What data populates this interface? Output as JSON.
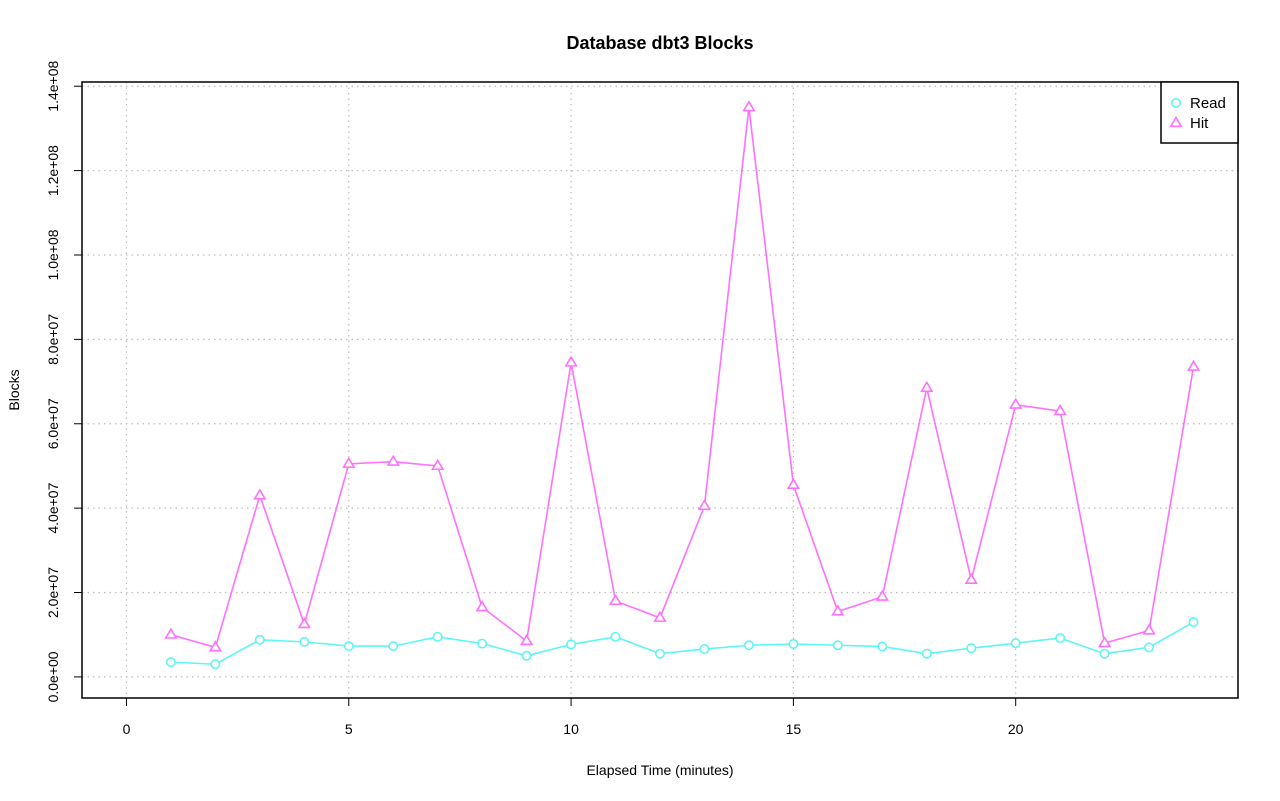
{
  "chart_data": {
    "type": "line",
    "title": "Database dbt3 Blocks",
    "xlabel": "Elapsed Time (minutes)",
    "ylabel": "Blocks",
    "xlim": [
      -1,
      25
    ],
    "ylim": [
      -5000000,
      141000000
    ],
    "x_ticks": [
      0,
      5,
      10,
      15,
      20
    ],
    "x_tick_labels": [
      "0",
      "5",
      "10",
      "15",
      "20"
    ],
    "y_ticks": [
      0,
      20000000,
      40000000,
      60000000,
      80000000,
      100000000,
      120000000,
      140000000
    ],
    "y_tick_labels": [
      "0.0e+00",
      "2.0e+07",
      "4.0e+07",
      "6.0e+07",
      "8.0e+07",
      "1.0e+08",
      "1.2e+08",
      "1.4e+08"
    ],
    "grid": true,
    "legend_position": "top-right",
    "x": [
      1,
      2,
      3,
      4,
      5,
      6,
      7,
      8,
      9,
      10,
      11,
      12,
      13,
      14,
      15,
      16,
      17,
      18,
      19,
      20,
      21,
      22,
      23,
      24
    ],
    "series": [
      {
        "name": "Read",
        "color": "#5ff5f5",
        "marker": "circle",
        "values": [
          3500000,
          3000000,
          8800000,
          8300000,
          7300000,
          7300000,
          9500000,
          7900000,
          5000000,
          7700000,
          9500000,
          5500000,
          6600000,
          7500000,
          7800000,
          7500000,
          7200000,
          5500000,
          6800000,
          8000000,
          9200000,
          5500000,
          7000000,
          13000000
        ]
      },
      {
        "name": "Hit",
        "color": "#ff70ff",
        "marker": "triangle",
        "values": [
          10000000,
          7000000,
          43000000,
          12500000,
          50500000,
          51000000,
          50000000,
          16500000,
          8500000,
          74500000,
          18000000,
          14000000,
          40500000,
          135000000,
          45500000,
          15500000,
          19000000,
          68500000,
          23000000,
          64500000,
          63000000,
          8000000,
          11000000,
          73500000
        ]
      }
    ]
  }
}
